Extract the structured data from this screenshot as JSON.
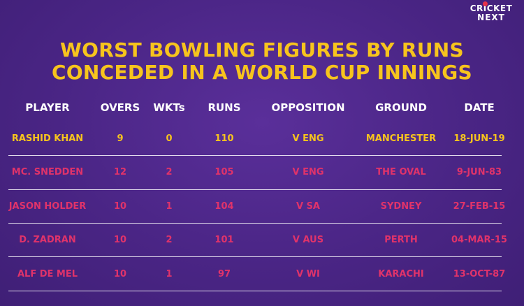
{
  "logo": {
    "line1": "CRICKET",
    "line2": "NEXT"
  },
  "title": {
    "line1": "WORST BOWLING FIGURES BY RUNS",
    "line2": "CONCEDED IN A WORLD CUP INNINGS"
  },
  "table": {
    "headers": [
      "PLAYER",
      "OVERS",
      "WKTs",
      "RUNS",
      "OPPOSITION",
      "GROUND",
      "DATE"
    ],
    "rows": [
      [
        "RASHID KHAN",
        "9",
        "0",
        "110",
        "V ENG",
        "MANCHESTER",
        "18-JUN-19"
      ],
      [
        "MC. SNEDDEN",
        "12",
        "2",
        "105",
        "V ENG",
        "THE OVAL",
        "9-JUN-83"
      ],
      [
        "JASON HOLDER",
        "10",
        "1",
        "104",
        "V SA",
        "SYDNEY",
        "27-FEB-15"
      ],
      [
        "D. ZADRAN",
        "10",
        "2",
        "101",
        "V AUS",
        "PERTH",
        "04-MAR-15"
      ],
      [
        "ALF DE MEL",
        "10",
        "1",
        "97",
        "V WI",
        "KARACHI",
        "13-OCT-87"
      ]
    ]
  },
  "colors": {
    "background": "#4a2585",
    "title": "#f7c41d",
    "highlight_row": "#f7c41d",
    "row_text": "#e0336a",
    "header_text": "#ffffff",
    "logo_dot": "#e8324a"
  }
}
